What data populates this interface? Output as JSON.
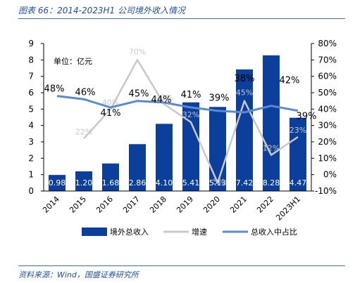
{
  "title": "图表 66：2014-2023H1 公司境外收入情况",
  "source": "资料来源：Wind，国盛证券研究所",
  "chart_data": {
    "type": "bar",
    "unit_label": "单位：亿元",
    "categories": [
      "2014",
      "2015",
      "2016",
      "2017",
      "2018",
      "2019",
      "2020",
      "2021",
      "2022",
      "2023H1"
    ],
    "series": [
      {
        "name": "境外总收入",
        "type": "bar",
        "axis": "left",
        "values": [
          0.98,
          1.2,
          1.68,
          2.86,
          4.1,
          5.41,
          5.13,
          7.42,
          8.28,
          4.47
        ],
        "labels": [
          "0.98",
          "1.20",
          "1.68",
          "2.86",
          "4.10",
          "5.41",
          "5.13",
          "7.42",
          "8.28",
          "4.47"
        ]
      },
      {
        "name": "增速",
        "type": "line",
        "axis": "right",
        "values": [
          null,
          22,
          40,
          70,
          43,
          32,
          -5,
          45,
          12,
          23
        ],
        "labels": [
          "",
          "22%",
          "40%",
          "70%",
          "43%",
          "32%",
          "-5%",
          "45%",
          "12%",
          "23%"
        ]
      },
      {
        "name": "总收入中占比",
        "type": "line",
        "axis": "right",
        "values": [
          48,
          46,
          41,
          45,
          44,
          41,
          39,
          38,
          42,
          39
        ],
        "labels": [
          "48%",
          "46%",
          "41%",
          "45%",
          "44%",
          "41%",
          "39%",
          "38%",
          "42%",
          "39%"
        ]
      }
    ],
    "y_left": {
      "min": 0,
      "max": 9,
      "ticks": [
        "0",
        "1",
        "2",
        "3",
        "4",
        "5",
        "6",
        "7",
        "8",
        "9"
      ]
    },
    "y_right": {
      "min": -10,
      "max": 80,
      "ticks": [
        "-10%",
        "0%",
        "10%",
        "20%",
        "30%",
        "40%",
        "50%",
        "60%",
        "70%",
        "80%"
      ]
    },
    "grid": false,
    "legend_position": "bottom",
    "colors": {
      "bar": "#0c3e9c",
      "growth": "#c8c8c8",
      "share": "#5b8ad0"
    }
  }
}
